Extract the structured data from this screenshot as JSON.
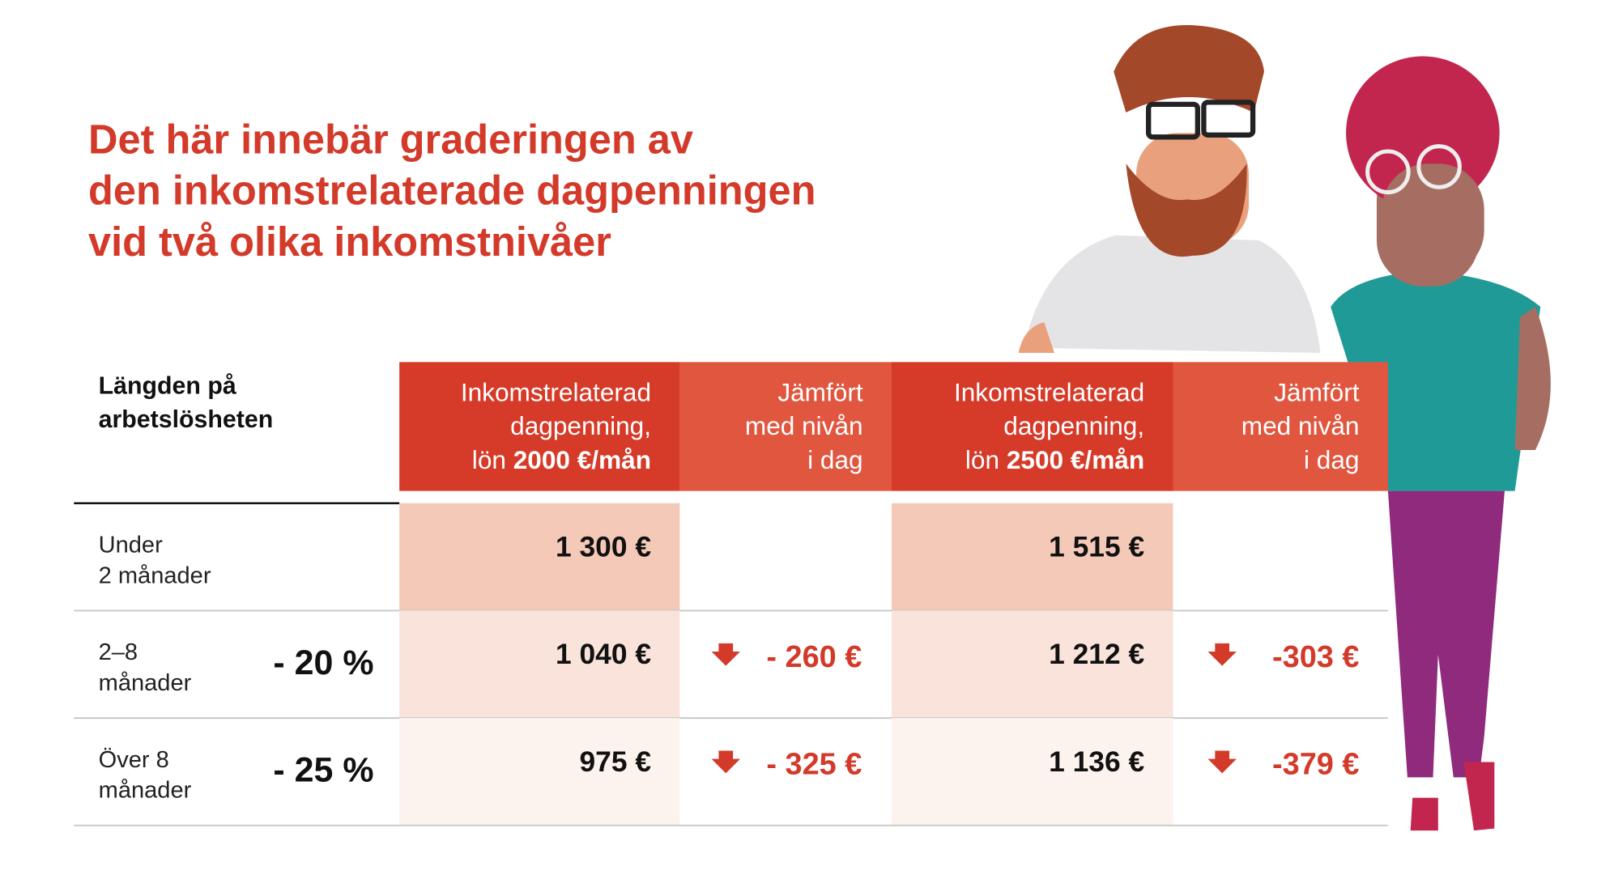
{
  "title": [
    "Det här innebär graderingen av",
    "den inkomstrelaterade dagpenningen",
    "vid två olika inkomstnivåer"
  ],
  "table": {
    "corner": [
      "Längden på",
      "arbetslösheten"
    ],
    "headers": [
      {
        "lines": [
          "Inkomstrelaterad",
          "dagpenning,"
        ],
        "prefix": "lön ",
        "bold": "2000 €/mån"
      },
      {
        "lines": [
          "Jämfört",
          "med nivån",
          "i dag"
        ]
      },
      {
        "lines": [
          "Inkomstrelaterad",
          "dagpenning,"
        ],
        "prefix": "lön ",
        "bold": "2500 €/mån"
      },
      {
        "lines": [
          "Jämfört",
          "med nivån",
          "i dag"
        ]
      }
    ],
    "rows": [
      {
        "label": [
          "Under",
          "2 månader"
        ],
        "income_2000": "1 300 €",
        "income_2500": "1 515 €"
      },
      {
        "label": [
          "2–8",
          "månader"
        ],
        "cut": "- 20 %",
        "income_2000": "1 040 €",
        "change_2000": "- 260 €",
        "income_2500": "1 212 €",
        "change_2500": "-303 €"
      },
      {
        "label": [
          "Över 8",
          "månader"
        ],
        "cut": "- 25 %",
        "income_2000": "975 €",
        "change_2000": "- 325 €",
        "income_2500": "1 136 €",
        "change_2500": "-379 €"
      }
    ]
  }
}
